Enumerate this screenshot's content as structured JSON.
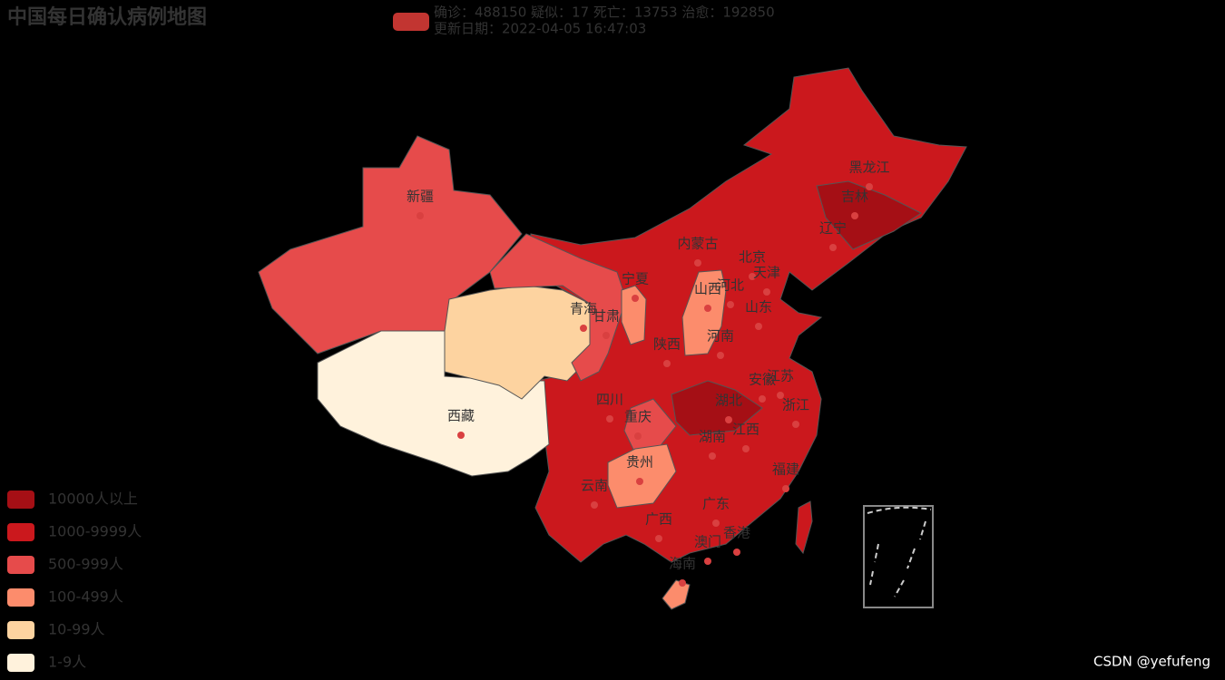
{
  "title": "中国每日确认病例地图",
  "legend": {
    "color": "#c23531",
    "lines": [
      "确诊：488150 疑似：17 死亡：13753 治愈：192850",
      "更新日期：2022-04-05 16:47:03"
    ]
  },
  "pieces": [
    {
      "label": "10000人以上",
      "color": "#a50f15"
    },
    {
      "label": "1000-9999人",
      "color": "#cb181d"
    },
    {
      "label": "500-999人",
      "color": "#e64b4b"
    },
    {
      "label": "100-499人",
      "color": "#fc8c6c"
    },
    {
      "label": "10-99人",
      "color": "#fdd3a0"
    },
    {
      "label": "1-9人",
      "color": "#fff2dc"
    }
  ],
  "provinces": [
    {
      "name": "新疆",
      "color": "#e64b4b"
    },
    {
      "name": "西藏",
      "color": "#fff2dc"
    },
    {
      "name": "青海",
      "color": "#fdd3a0"
    },
    {
      "name": "甘肃",
      "color": "#e64b4b"
    },
    {
      "name": "宁夏",
      "color": "#fc8c6c"
    },
    {
      "name": "山西",
      "color": "#fc8c6c"
    },
    {
      "name": "重庆",
      "color": "#e64b4b"
    },
    {
      "name": "贵州",
      "color": "#fc8c6c"
    },
    {
      "name": "湖北",
      "color": "#a50f15"
    },
    {
      "name": "吉林",
      "color": "#a50f15"
    },
    {
      "name": "海南",
      "color": "#fc8c6c"
    },
    {
      "name": "内蒙古",
      "color": "#cb181d"
    },
    {
      "name": "黑龙江",
      "color": "#cb181d"
    },
    {
      "name": "辽宁",
      "color": "#cb181d"
    },
    {
      "name": "北京",
      "color": "#cb181d"
    },
    {
      "name": "天津",
      "color": "#cb181d"
    },
    {
      "name": "河北",
      "color": "#cb181d"
    },
    {
      "name": "山东",
      "color": "#cb181d"
    },
    {
      "name": "河南",
      "color": "#cb181d"
    },
    {
      "name": "陕西",
      "color": "#cb181d"
    },
    {
      "name": "四川",
      "color": "#cb181d"
    },
    {
      "name": "安徽",
      "color": "#cb181d"
    },
    {
      "name": "江苏",
      "color": "#cb181d"
    },
    {
      "name": "浙江",
      "color": "#cb181d"
    },
    {
      "name": "江西",
      "color": "#cb181d"
    },
    {
      "name": "湖南",
      "color": "#cb181d"
    },
    {
      "name": "云南",
      "color": "#cb181d"
    },
    {
      "name": "广西",
      "color": "#cb181d"
    },
    {
      "name": "广东",
      "color": "#cb181d"
    },
    {
      "name": "福建",
      "color": "#cb181d"
    },
    {
      "name": "香港",
      "color": "#cb181d"
    },
    {
      "name": "澳门",
      "color": "#cb181d"
    }
  ],
  "watermark": "CSDN @yefufeng"
}
